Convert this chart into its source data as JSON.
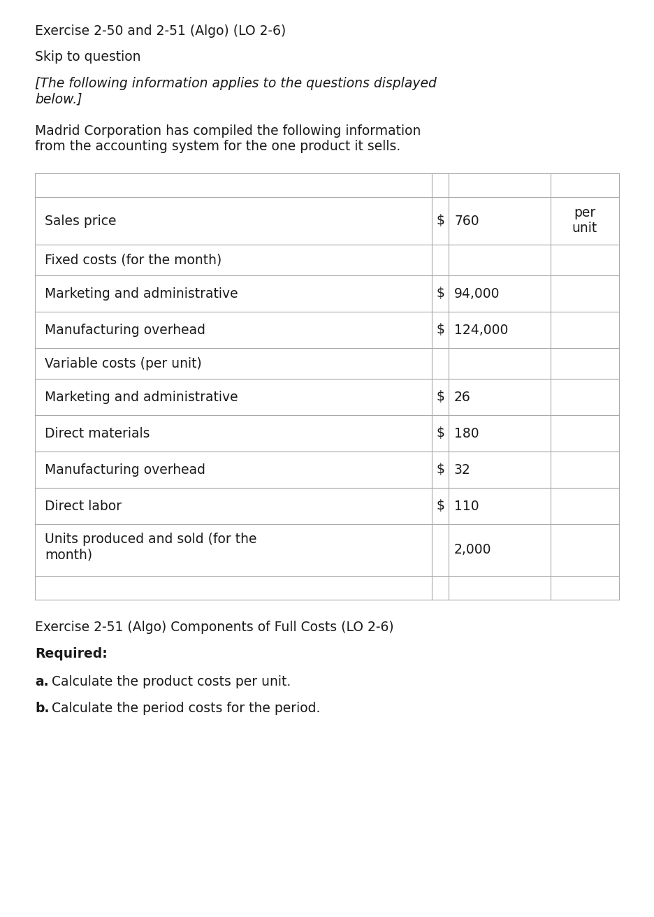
{
  "title_line1": "Exercise 2-50 and 2-51 (Algo) (LO 2-6)",
  "skip_line": "Skip to question",
  "intro_italic": "[The following information applies to the questions displayed\nbelow.]",
  "intro_normal": "Madrid Corporation has compiled the following information\nfrom the accounting system for the one product it sells.",
  "table_rows": [
    {
      "label": "",
      "dollar": "",
      "value": "",
      "per_unit": ""
    },
    {
      "label": "Sales price",
      "dollar": "$",
      "value": "760",
      "per_unit": "per\nunit"
    },
    {
      "label": "Fixed costs (for the month)",
      "dollar": "",
      "value": "",
      "per_unit": ""
    },
    {
      "label": "Marketing and administrative",
      "dollar": "$",
      "value": "94,000",
      "per_unit": ""
    },
    {
      "label": "Manufacturing overhead",
      "dollar": "$",
      "value": "124,000",
      "per_unit": ""
    },
    {
      "label": "Variable costs (per unit)",
      "dollar": "",
      "value": "",
      "per_unit": ""
    },
    {
      "label": "Marketing and administrative",
      "dollar": "$",
      "value": "26",
      "per_unit": ""
    },
    {
      "label": "Direct materials",
      "dollar": "$",
      "value": "180",
      "per_unit": ""
    },
    {
      "label": "Manufacturing overhead",
      "dollar": "$",
      "value": "32",
      "per_unit": ""
    },
    {
      "label": "Direct labor",
      "dollar": "$",
      "value": "110",
      "per_unit": ""
    },
    {
      "label": "Units produced and sold (for the\nmonth)",
      "dollar": "",
      "value": "2,000",
      "per_unit": ""
    },
    {
      "label": "",
      "dollar": "",
      "value": "",
      "per_unit": ""
    }
  ],
  "exercise_line": "Exercise 2-51 (Algo) Components of Full Costs (LO 2-6)",
  "required_label": "Required:",
  "req_a_prefix": "a.",
  "req_a_rest": " Calculate the product costs per unit.",
  "req_b_prefix": "b.",
  "req_b_rest": " Calculate the period costs for the period.",
  "bg_color": "#ffffff",
  "text_color": "#1a1a1a",
  "line_color": "#aaaaaa",
  "font_size": 13.5,
  "title_font_size": 13.5
}
